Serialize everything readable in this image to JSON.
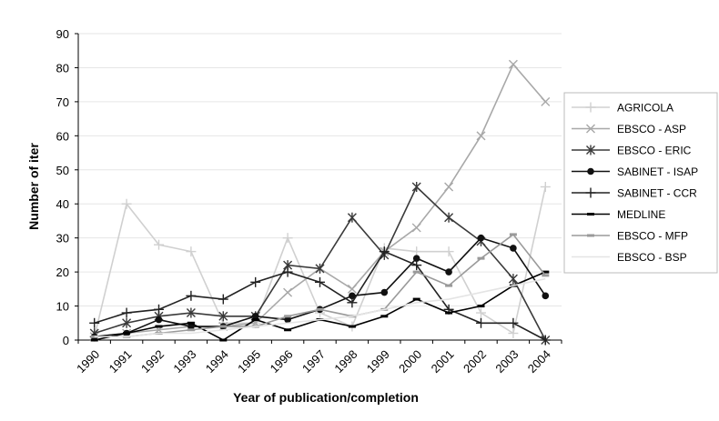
{
  "chart_data": {
    "type": "line",
    "title": "",
    "xlabel": "Year of publication/completion",
    "ylabel": "Number of iter",
    "categories": [
      "1990",
      "1991",
      "1992",
      "1993",
      "1994",
      "1995",
      "1996",
      "1997",
      "1998",
      "1999",
      "2000",
      "2001",
      "2002",
      "2003",
      "2004"
    ],
    "ylim": [
      0,
      90
    ],
    "yticks": [
      0,
      10,
      20,
      30,
      40,
      50,
      60,
      70,
      80,
      90
    ],
    "grid": "horizontal",
    "legend_position": "right",
    "series": [
      {
        "name": "AGRICOLA",
        "marker": "plus",
        "color": "#d0d0d0",
        "values": [
          1,
          40,
          28,
          26,
          5,
          5,
          30,
          8,
          4,
          27,
          26,
          26,
          8,
          2,
          45
        ]
      },
      {
        "name": "EBSCO - ASP",
        "marker": "x",
        "color": "#a8a8a8",
        "values": [
          1,
          2,
          3,
          4,
          4,
          5,
          14,
          21,
          15,
          26,
          33,
          45,
          60,
          81,
          70
        ]
      },
      {
        "name": "EBSCO - ERIC",
        "marker": "star",
        "color": "#3a3a3a",
        "values": [
          2,
          5,
          7,
          8,
          7,
          7,
          22,
          21,
          36,
          25,
          45,
          36,
          29,
          18,
          0
        ]
      },
      {
        "name": "SABINET - ISAP",
        "marker": "circle",
        "color": "#111111",
        "values": [
          1,
          2,
          6,
          4,
          4,
          7,
          6,
          9,
          13,
          14,
          24,
          20,
          30,
          27,
          13
        ]
      },
      {
        "name": "SABINET - CCR",
        "marker": "plus",
        "color": "#222222",
        "values": [
          5,
          8,
          9,
          13,
          12,
          17,
          20,
          17,
          11,
          26,
          22,
          9,
          5,
          5,
          0
        ]
      },
      {
        "name": "MEDLINE",
        "marker": "dash",
        "color": "#000000",
        "values": [
          0,
          2,
          4,
          5,
          0,
          6,
          3,
          6,
          4,
          7,
          12,
          8,
          10,
          16,
          20
        ]
      },
      {
        "name": "EBSCO - MFP",
        "marker": "dash",
        "color": "#9a9a9a",
        "values": [
          1,
          1,
          2,
          3,
          4,
          4,
          7,
          9,
          7,
          9,
          20,
          16,
          24,
          31,
          19
        ]
      },
      {
        "name": "EBSCO - BSP",
        "marker": "none",
        "color": "#e4e4e4",
        "values": [
          1,
          1,
          2,
          2,
          3,
          4,
          5,
          6,
          7,
          9,
          11,
          12,
          14,
          16,
          18
        ]
      }
    ]
  }
}
